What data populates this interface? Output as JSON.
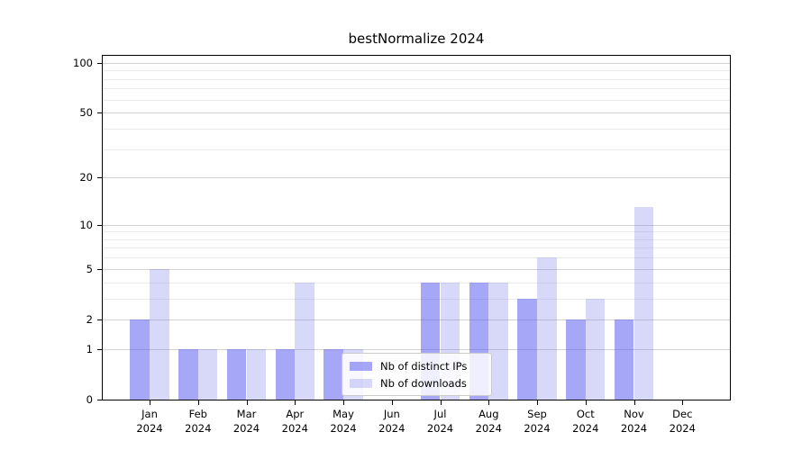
{
  "title": "bestNormalize 2024",
  "chart_data": {
    "type": "bar",
    "title": "bestNormalize 2024",
    "categories": [
      "Jan",
      "Feb",
      "Mar",
      "Apr",
      "May",
      "Jun",
      "Jul",
      "Aug",
      "Sep",
      "Oct",
      "Nov",
      "Dec"
    ],
    "x_year_label": "2024",
    "series": [
      {
        "name": "Nb of distinct IPs",
        "color_hex": "#a7a7f7",
        "fill": "rgba(80,80,240,0.5)",
        "values": [
          2,
          1,
          1,
          1,
          1,
          0,
          4,
          4,
          3,
          2,
          2,
          0
        ]
      },
      {
        "name": "Nb of downloads",
        "color_hex": "#d9d9f9",
        "fill": "rgba(100,100,230,0.25)",
        "values": [
          5,
          1,
          1,
          4,
          1,
          0,
          4,
          4,
          6,
          3,
          13,
          0
        ]
      }
    ],
    "y_axis": {
      "scale": "log10(1+v)",
      "tick_labels": [
        0,
        1,
        2,
        5,
        10,
        20,
        50,
        100
      ],
      "minor_gridlines": [
        3,
        4,
        6,
        7,
        8,
        9,
        30,
        40,
        60,
        70,
        80,
        90
      ],
      "ymax": 110,
      "ymin": 0
    },
    "grid": true,
    "legend_position": "lower center, inside axes"
  },
  "colors": {
    "major_grid": "#d2d2d2",
    "minor_grid": "#ebebeb",
    "spine": "#000000",
    "background": "#ffffff"
  }
}
